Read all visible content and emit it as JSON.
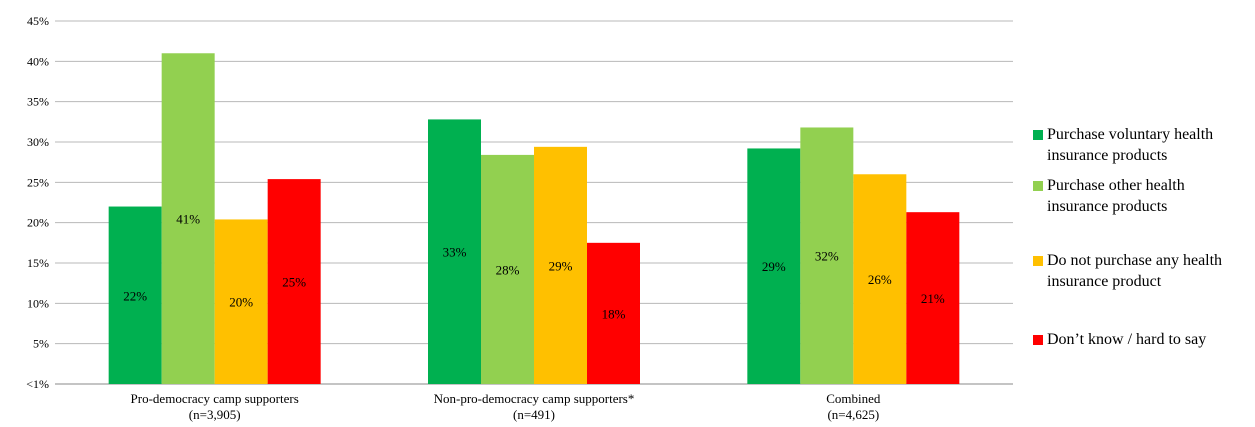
{
  "chart_data": {
    "type": "bar",
    "categories": [
      [
        "Pro-democracy camp supporters",
        "(n=3,905)"
      ],
      [
        "Non-pro-democracy camp supporters*",
        "(n=491)"
      ],
      [
        "Combined",
        "(n=4,625)"
      ]
    ],
    "y_ticks": [
      "<1%",
      "5%",
      "10%",
      "15%",
      "20%",
      "25%",
      "30%",
      "35%",
      "40%",
      "45%"
    ],
    "ylim": [
      0,
      45
    ],
    "grid": true,
    "legend_position": "right",
    "series": [
      {
        "name": "Purchase voluntary health insurance products",
        "color": "#00b050",
        "values": [
          22,
          32.8,
          29.2
        ],
        "labels": [
          "22%",
          "33%",
          "29%"
        ]
      },
      {
        "name": "Purchase other health insurance products",
        "color": "#92d050",
        "values": [
          41,
          28.4,
          31.8
        ],
        "labels": [
          "41%",
          "28%",
          "32%"
        ]
      },
      {
        "name": "Do not purchase any health insurance product",
        "color": "#ffc000",
        "values": [
          20.4,
          29.4,
          26
        ],
        "labels": [
          "20%",
          "29%",
          "26%"
        ]
      },
      {
        "name": "Don’t know / hard to say",
        "color": "#ff0000",
        "values": [
          25.4,
          17.5,
          21.3
        ],
        "labels": [
          "25%",
          "18%",
          "21%"
        ]
      }
    ]
  },
  "legend": {
    "items": [
      {
        "label_line1": "Purchase voluntary health",
        "label_line2": "insurance products"
      },
      {
        "label_line1": "Purchase other health",
        "label_line2": "insurance products"
      },
      {
        "label_line1": "Do not purchase any health",
        "label_line2": "insurance product"
      },
      {
        "label_line1": "Don’t know / hard to say",
        "label_line2": ""
      }
    ]
  }
}
